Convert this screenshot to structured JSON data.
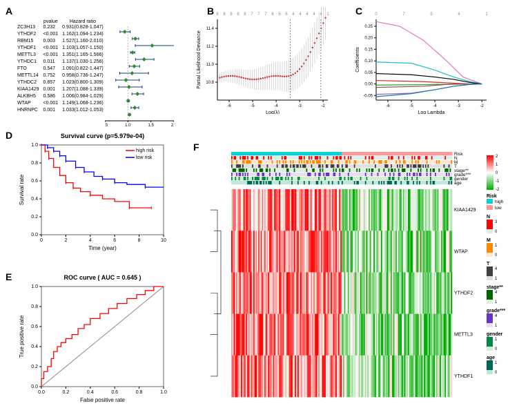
{
  "panelA": {
    "label": "A",
    "headers": [
      "",
      "pvalue",
      "Hazard ratio"
    ],
    "rows": [
      {
        "gene": "ZC3H13",
        "p": "0.232",
        "hr": "0.931(0.828-1.047)",
        "est": 0.931,
        "lo": 0.828,
        "hi": 1.047,
        "sig": false
      },
      {
        "gene": "YTHDF2",
        "p": "<0.001",
        "hr": "1.162(1.094-1.234)",
        "est": 1.162,
        "lo": 1.094,
        "hi": 1.234,
        "sig": true
      },
      {
        "gene": "RBM15",
        "p": "0.003",
        "hr": "1.527(1.160-2.010)",
        "est": 1.527,
        "lo": 1.16,
        "hi": 2.01,
        "sig": true
      },
      {
        "gene": "YTHDF1",
        "p": "<0.001",
        "hr": "1.103(1.057-1.150)",
        "est": 1.103,
        "lo": 1.057,
        "hi": 1.15,
        "sig": true
      },
      {
        "gene": "METTL3",
        "p": "<0.001",
        "hr": "1.351(1.165-1.566)",
        "est": 1.351,
        "lo": 1.165,
        "hi": 1.566,
        "sig": true
      },
      {
        "gene": "YTHDC1",
        "p": "0.011",
        "hr": "1.137(1.030-1.256)",
        "est": 1.137,
        "lo": 1.03,
        "hi": 1.256,
        "sig": true
      },
      {
        "gene": "FTO",
        "p": "0.547",
        "hr": "1.091(0.822-1.447)",
        "est": 1.091,
        "lo": 0.822,
        "hi": 1.447,
        "sig": false
      },
      {
        "gene": "METTL14",
        "p": "0.752",
        "hr": "0.958(0.736-1.247)",
        "est": 0.958,
        "lo": 0.736,
        "hi": 1.247,
        "sig": false
      },
      {
        "gene": "YTHDC2",
        "p": "0.857",
        "hr": "1.023(0.800-1.309)",
        "est": 1.023,
        "lo": 0.8,
        "hi": 1.309,
        "sig": false
      },
      {
        "gene": "KIAA1429",
        "p": "0.001",
        "hr": "1.207(1.088-1.339)",
        "est": 1.207,
        "lo": 1.088,
        "hi": 1.339,
        "sig": true
      },
      {
        "gene": "ALKBH5",
        "p": "0.586",
        "hr": "1.006(0.984-1.029)",
        "est": 1.006,
        "lo": 0.984,
        "hi": 1.029,
        "sig": false
      },
      {
        "gene": "WTAP",
        "p": "<0.001",
        "hr": "1.149(1.068-1.236)",
        "est": 1.149,
        "lo": 1.068,
        "hi": 1.236,
        "sig": true
      },
      {
        "gene": "HNRNPC",
        "p": "0.001",
        "hr": "1.033(1.012-1.053)",
        "est": 1.033,
        "lo": 1.012,
        "hi": 1.053,
        "sig": true
      }
    ],
    "xaxis": "Hazard ratio",
    "xticks": [
      0.5,
      1.0,
      1.5,
      2.0
    ],
    "marker_color": "#2e8b2e",
    "ci_color": "#1a3d8f"
  },
  "panelB": {
    "label": "B",
    "top_counts": [
      8,
      8,
      8,
      8,
      8,
      7,
      7,
      7,
      6,
      5,
      5,
      4,
      4,
      4,
      4,
      4,
      1
    ],
    "ylabel": "Partial Likelihood Deviance",
    "xlabel": "Log(λ)",
    "xticks": [
      -6,
      -5,
      -4,
      -3,
      -2
    ],
    "yticks": [
      10.8,
      11.0,
      11.2,
      11.4
    ],
    "point_color": "#d62728",
    "n_points": 50,
    "vline1": -3.4,
    "vline2": -2.1
  },
  "panelC": {
    "label": "C",
    "top_counts": [
      0,
      7,
      5,
      4,
      1
    ],
    "ylabel": "Coefficients",
    "xlabel": "Log Lambda",
    "xticks": [
      -6,
      -5,
      -4,
      -3,
      -2
    ],
    "yticks": [
      -0.05,
      0.0,
      0.05,
      0.1,
      0.15,
      0.2,
      0.25
    ],
    "lines": [
      {
        "color": "#e377c2",
        "pts": [
          [
            -6.5,
            0.27
          ],
          [
            -5.5,
            0.25
          ],
          [
            -4.5,
            0.19
          ],
          [
            -3.5,
            0.1
          ],
          [
            -2.8,
            0.03
          ],
          [
            -2.0,
            0.0
          ]
        ]
      },
      {
        "color": "#17becf",
        "pts": [
          [
            -6.5,
            0.095
          ],
          [
            -5.0,
            0.09
          ],
          [
            -4.0,
            0.06
          ],
          [
            -3.2,
            0.03
          ],
          [
            -2.5,
            0.01
          ],
          [
            -2.0,
            0.0
          ]
        ]
      },
      {
        "color": "#000000",
        "pts": [
          [
            -6.5,
            0.045
          ],
          [
            -5.0,
            0.04
          ],
          [
            -4.0,
            0.03
          ],
          [
            -3.2,
            0.02
          ],
          [
            -2.5,
            0.006
          ],
          [
            -2.0,
            0.0
          ]
        ]
      },
      {
        "color": "#d62728",
        "pts": [
          [
            -6.5,
            0.015
          ],
          [
            -4.5,
            0.01
          ],
          [
            -3.5,
            0.005
          ],
          [
            -2.5,
            0.0
          ],
          [
            -2.0,
            0.0
          ]
        ]
      },
      {
        "color": "#2ca02c",
        "pts": [
          [
            -6.5,
            -0.005
          ],
          [
            -4.5,
            -0.003
          ],
          [
            -3.0,
            0.0
          ],
          [
            -2.0,
            0.0
          ]
        ]
      },
      {
        "color": "#8c564b",
        "pts": [
          [
            -6.5,
            -0.015
          ],
          [
            -4.5,
            -0.01
          ],
          [
            -3.5,
            -0.002
          ],
          [
            -2.5,
            0.0
          ],
          [
            -2.0,
            0.0
          ]
        ]
      },
      {
        "color": "#9467bd",
        "pts": [
          [
            -6.5,
            -0.045
          ],
          [
            -5.0,
            -0.04
          ],
          [
            -4.0,
            -0.025
          ],
          [
            -3.2,
            -0.01
          ],
          [
            -2.5,
            -0.002
          ],
          [
            -2.0,
            0.0
          ]
        ]
      },
      {
        "color": "#1f77b4",
        "pts": [
          [
            -6.5,
            -0.055
          ],
          [
            -5.0,
            -0.042
          ],
          [
            -4.0,
            -0.025
          ],
          [
            -3.2,
            -0.01
          ],
          [
            -2.5,
            -0.002
          ],
          [
            -2.0,
            0.0
          ]
        ]
      }
    ]
  },
  "panelD": {
    "label": "D",
    "title": "Survival curve (p=5.979e-04)",
    "xlabel": "Time (year)",
    "ylabel": "Survival rate",
    "xticks": [
      0,
      2,
      4,
      6,
      8,
      10
    ],
    "yticks": [
      0.0,
      0.2,
      0.4,
      0.6,
      0.8,
      1.0
    ],
    "legend": [
      {
        "label": "high risk",
        "color": "#ff0000"
      },
      {
        "label": "low risk",
        "color": "#0000ff"
      }
    ],
    "high_color": "#ff0000",
    "low_color": "#0000ff",
    "high_pts": [
      [
        0,
        1.0
      ],
      [
        0.3,
        0.93
      ],
      [
        0.6,
        0.85
      ],
      [
        1.0,
        0.75
      ],
      [
        1.5,
        0.66
      ],
      [
        2.0,
        0.58
      ],
      [
        2.6,
        0.52
      ],
      [
        3.2,
        0.48
      ],
      [
        4.0,
        0.44
      ],
      [
        5.0,
        0.4
      ],
      [
        6.0,
        0.37
      ],
      [
        7.2,
        0.3
      ],
      [
        9.0,
        0.3
      ]
    ],
    "low_pts": [
      [
        0,
        1.0
      ],
      [
        0.5,
        0.97
      ],
      [
        1.0,
        0.93
      ],
      [
        1.5,
        0.88
      ],
      [
        2.0,
        0.82
      ],
      [
        2.8,
        0.75
      ],
      [
        3.5,
        0.7
      ],
      [
        4.3,
        0.65
      ],
      [
        5.0,
        0.62
      ],
      [
        6.0,
        0.58
      ],
      [
        7.0,
        0.56
      ],
      [
        8.5,
        0.53
      ],
      [
        10.0,
        0.53
      ]
    ]
  },
  "panelE": {
    "label": "E",
    "title": "ROC curve ( AUC  =  0.645 )",
    "xlabel": "False positive rate",
    "ylabel": "True positive rate",
    "xticks": [
      0.0,
      0.2,
      0.4,
      0.6,
      0.8,
      1.0
    ],
    "yticks": [
      0.0,
      0.2,
      0.4,
      0.6,
      0.8,
      1.0
    ],
    "roc_color": "#ff0000",
    "roc_pts": [
      [
        0,
        0
      ],
      [
        0.02,
        0.08
      ],
      [
        0.05,
        0.15
      ],
      [
        0.08,
        0.2
      ],
      [
        0.1,
        0.28
      ],
      [
        0.13,
        0.35
      ],
      [
        0.16,
        0.4
      ],
      [
        0.2,
        0.44
      ],
      [
        0.25,
        0.48
      ],
      [
        0.3,
        0.52
      ],
      [
        0.35,
        0.58
      ],
      [
        0.4,
        0.62
      ],
      [
        0.48,
        0.68
      ],
      [
        0.55,
        0.73
      ],
      [
        0.62,
        0.78
      ],
      [
        0.7,
        0.83
      ],
      [
        0.78,
        0.88
      ],
      [
        0.85,
        0.92
      ],
      [
        0.92,
        0.96
      ],
      [
        1.0,
        1.0
      ]
    ]
  },
  "panelF": {
    "label": "F",
    "row_genes": [
      "KIAA1429",
      "WTAP",
      "YTHDF2",
      "METTL3",
      "YTHDF1"
    ],
    "annotation_tracks": [
      {
        "name": "Risk",
        "colors": {
          "high": "#00d4d4",
          "low": "#ff9999"
        }
      },
      {
        "name": "N",
        "colors": {
          "0": "#d9f0e8",
          "3": "#ff0000"
        }
      },
      {
        "name": "M",
        "colors": {
          "0": "#ffe8cc",
          "1": "#ff8800"
        }
      },
      {
        "name": "T",
        "colors": {
          "1": "#e0e0e0",
          "4": "#404040"
        }
      },
      {
        "name": "stage**",
        "colors": {
          "1": "#e0f0e0",
          "4": "#006600"
        }
      },
      {
        "name": "grade***",
        "colors": {
          "1": "#e8e0f0",
          "4": "#6633cc"
        }
      },
      {
        "name": "gender",
        "colors": {
          "0": "#d0f0d0",
          "1": "#008844"
        }
      },
      {
        "name": "age",
        "colors": {
          "0": "#c0e8d8",
          "1": "#006655"
        }
      }
    ],
    "risk_legend": {
      "title": "Risk",
      "items": [
        {
          "label": "high",
          "color": "#00d4d4"
        },
        {
          "label": "low",
          "color": "#ff9999"
        }
      ]
    },
    "expr_scale": {
      "min": -2,
      "max": 2,
      "colors": [
        "#00aa00",
        "#ffffff",
        "#ff0000"
      ]
    },
    "n_cols": 180,
    "split": 90
  }
}
